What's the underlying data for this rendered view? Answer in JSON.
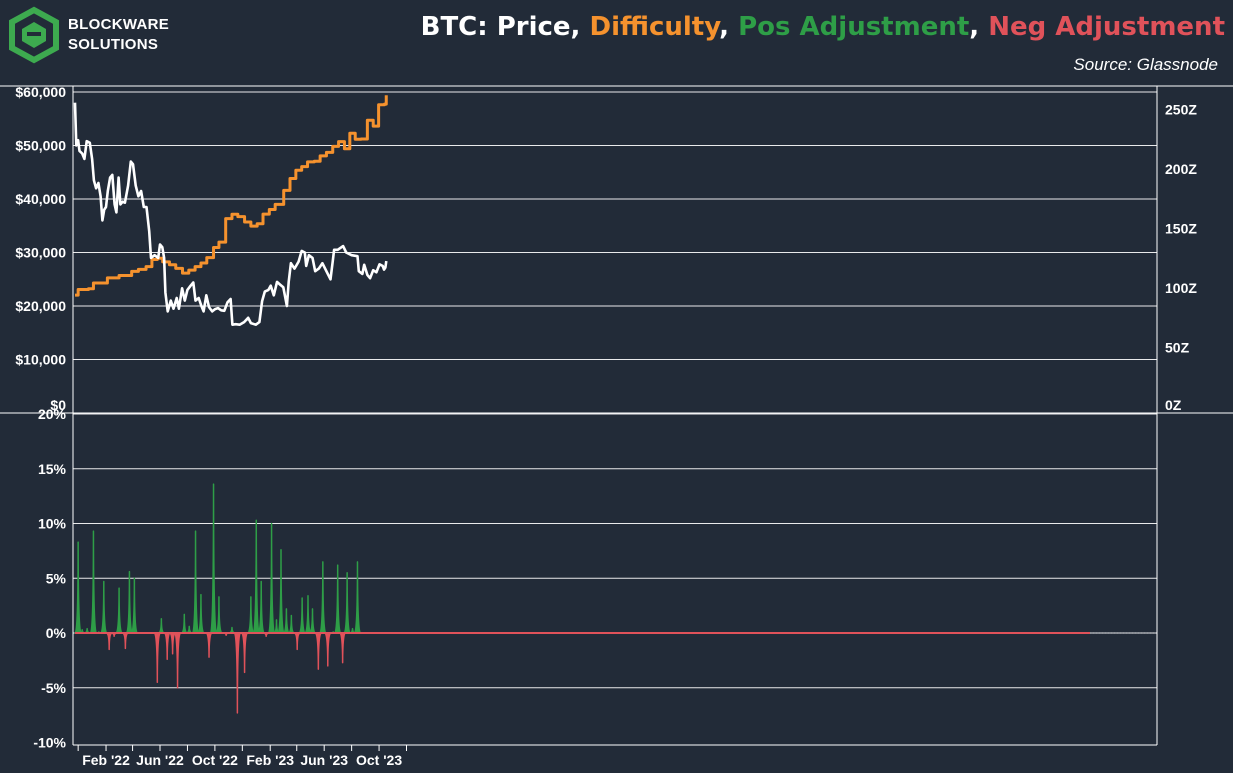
{
  "brand": {
    "line1": "BLOCKWARE",
    "line2": "SOLUTIONS",
    "logo_icon": "blockware-hexagon-logo-icon",
    "logo_color": "#3daa4f"
  },
  "title": {
    "price": "BTC: Price",
    "sep1": ", ",
    "difficulty": "Difficulty",
    "sep2": ", ",
    "pos": "Pos Adjustment",
    "sep3": ", ",
    "neg": "Neg Adjustment"
  },
  "source": "Source: Glassnode",
  "colors": {
    "background": "#222b38",
    "price": "#ffffff",
    "difficulty": "#f5922e",
    "pos": "#2e9e47",
    "neg": "#e0525a",
    "grid": "#ffffff"
  },
  "chart_data": [
    {
      "type": "line",
      "panel": "top",
      "x_ticks": [
        "Feb '22",
        "Jun '22",
        "Oct '22",
        "Feb '23",
        "Jun '23",
        "Oct '23"
      ],
      "y_left_ticks": [
        "$0",
        "$10,000",
        "$20,000",
        "$30,000",
        "$40,000",
        "$50,000",
        "$60,000"
      ],
      "y_right_ticks": [
        "0Z",
        "50Z",
        "100Z",
        "150Z",
        "200Z",
        "250Z"
      ],
      "ylim_left": [
        0,
        60000
      ],
      "ylim_right": [
        0,
        270
      ],
      "series": [
        {
          "name": "Price",
          "axis": "left",
          "points": [
            [
              "2021-11-24",
              58000
            ],
            [
              "2021-11-27",
              50000
            ],
            [
              "2021-12-01",
              51000
            ],
            [
              "2021-12-04",
              49000
            ],
            [
              "2021-12-10",
              48500
            ],
            [
              "2021-12-15",
              47500
            ],
            [
              "2021-12-20",
              50800
            ],
            [
              "2021-12-27",
              50500
            ],
            [
              "2022-01-01",
              47500
            ],
            [
              "2022-01-05",
              43500
            ],
            [
              "2022-01-10",
              42000
            ],
            [
              "2022-01-15",
              43000
            ],
            [
              "2022-01-20",
              40500
            ],
            [
              "2022-01-24",
              36000
            ],
            [
              "2022-01-28",
              38000
            ],
            [
              "2022-02-01",
              38500
            ],
            [
              "2022-02-05",
              41500
            ],
            [
              "2022-02-10",
              44000
            ],
            [
              "2022-02-15",
              44500
            ],
            [
              "2022-02-20",
              39000
            ],
            [
              "2022-02-24",
              37500
            ],
            [
              "2022-03-01",
              44000
            ],
            [
              "2022-03-05",
              39000
            ],
            [
              "2022-03-10",
              39500
            ],
            [
              "2022-03-15",
              39300
            ],
            [
              "2022-03-22",
              42500
            ],
            [
              "2022-03-28",
              47000
            ],
            [
              "2022-04-02",
              46500
            ],
            [
              "2022-04-08",
              42500
            ],
            [
              "2022-04-14",
              40500
            ],
            [
              "2022-04-20",
              41500
            ],
            [
              "2022-04-26",
              38500
            ],
            [
              "2022-05-02",
              38500
            ],
            [
              "2022-05-08",
              34000
            ],
            [
              "2022-05-12",
              29000
            ],
            [
              "2022-05-20",
              29500
            ],
            [
              "2022-05-28",
              29000
            ],
            [
              "2022-06-01",
              31500
            ],
            [
              "2022-06-06",
              31000
            ],
            [
              "2022-06-10",
              29000
            ],
            [
              "2022-06-13",
              22500
            ],
            [
              "2022-06-18",
              19000
            ],
            [
              "2022-06-25",
              21000
            ],
            [
              "2022-07-01",
              19500
            ],
            [
              "2022-07-08",
              21500
            ],
            [
              "2022-07-13",
              19500
            ],
            [
              "2022-07-20",
              23300
            ],
            [
              "2022-07-26",
              21000
            ],
            [
              "2022-08-01",
              23000
            ],
            [
              "2022-08-08",
              23800
            ],
            [
              "2022-08-14",
              24400
            ],
            [
              "2022-08-19",
              21000
            ],
            [
              "2022-08-26",
              21500
            ],
            [
              "2022-09-01",
              20000
            ],
            [
              "2022-09-06",
              19000
            ],
            [
              "2022-09-12",
              22000
            ],
            [
              "2022-09-18",
              19800
            ],
            [
              "2022-09-25",
              19000
            ],
            [
              "2022-10-01",
              19400
            ],
            [
              "2022-10-08",
              19600
            ],
            [
              "2022-10-15",
              19200
            ],
            [
              "2022-10-22",
              19100
            ],
            [
              "2022-10-29",
              20700
            ],
            [
              "2022-11-05",
              21300
            ],
            [
              "2022-11-09",
              16500
            ],
            [
              "2022-11-16",
              16600
            ],
            [
              "2022-11-25",
              16500
            ],
            [
              "2022-12-05",
              17000
            ],
            [
              "2022-12-14",
              17800
            ],
            [
              "2022-12-20",
              16800
            ],
            [
              "2022-12-31",
              16500
            ],
            [
              "2023-01-08",
              17000
            ],
            [
              "2023-01-14",
              20900
            ],
            [
              "2023-01-20",
              22700
            ],
            [
              "2023-01-28",
              23000
            ],
            [
              "2023-02-02",
              23800
            ],
            [
              "2023-02-09",
              22000
            ],
            [
              "2023-02-16",
              24500
            ],
            [
              "2023-02-23",
              24000
            ],
            [
              "2023-03-02",
              23500
            ],
            [
              "2023-03-10",
              20000
            ],
            [
              "2023-03-14",
              24500
            ],
            [
              "2023-03-19",
              28000
            ],
            [
              "2023-03-27",
              27000
            ],
            [
              "2023-04-05",
              28300
            ],
            [
              "2023-04-12",
              30300
            ],
            [
              "2023-04-19",
              30000
            ],
            [
              "2023-04-22",
              27500
            ],
            [
              "2023-04-28",
              29500
            ],
            [
              "2023-05-06",
              29000
            ],
            [
              "2023-05-12",
              26500
            ],
            [
              "2023-05-20",
              27000
            ],
            [
              "2023-05-28",
              28000
            ],
            [
              "2023-06-06",
              26500
            ],
            [
              "2023-06-15",
              25000
            ],
            [
              "2023-06-20",
              28300
            ],
            [
              "2023-06-23",
              30500
            ],
            [
              "2023-07-01",
              30500
            ],
            [
              "2023-07-13",
              31200
            ],
            [
              "2023-07-20",
              30000
            ],
            [
              "2023-08-01",
              29500
            ],
            [
              "2023-08-14",
              29300
            ],
            [
              "2023-08-17",
              26500
            ],
            [
              "2023-08-25",
              26000
            ],
            [
              "2023-08-29",
              27700
            ],
            [
              "2023-09-05",
              25800
            ],
            [
              "2023-09-11",
              25200
            ],
            [
              "2023-09-18",
              26700
            ],
            [
              "2023-09-25",
              26300
            ],
            [
              "2023-10-02",
              27800
            ],
            [
              "2023-10-09",
              27500
            ],
            [
              "2023-10-12",
              26800
            ],
            [
              "2023-10-15",
              27200
            ],
            [
              "2023-10-17",
              28400
            ]
          ]
        },
        {
          "name": "Difficulty",
          "axis": "right",
          "steps": [
            [
              "2021-11-24",
              94.0
            ],
            [
              "2021-12-01",
              98.7
            ],
            [
              "2021-12-10",
              98.7
            ],
            [
              "2021-12-24",
              99.4
            ],
            [
              "2022-01-04",
              104.2
            ],
            [
              "2022-01-20",
              104.2
            ],
            [
              "2022-02-04",
              108.5
            ],
            [
              "2022-03-02",
              110.5
            ],
            [
              "2022-03-30",
              114.0
            ],
            [
              "2022-04-14",
              115.7
            ],
            [
              "2022-05-01",
              118.0
            ],
            [
              "2022-05-14",
              124.0
            ],
            [
              "2022-05-26",
              125.0
            ],
            [
              "2022-06-07",
              122.0
            ],
            [
              "2022-06-22",
              119.5
            ],
            [
              "2022-07-06",
              116.5
            ],
            [
              "2022-07-21",
              112.5
            ],
            [
              "2022-08-04",
              115.0
            ],
            [
              "2022-08-18",
              118.0
            ],
            [
              "2022-08-31",
              121.0
            ],
            [
              "2022-09-13",
              125.5
            ],
            [
              "2022-09-28",
              134.0
            ],
            [
              "2022-10-10",
              138.6
            ],
            [
              "2022-10-25",
              158.3
            ],
            [
              "2022-11-08",
              162.0
            ],
            [
              "2022-11-21",
              160.0
            ],
            [
              "2022-12-06",
              155.5
            ],
            [
              "2022-12-20",
              152.0
            ],
            [
              "2023-01-03",
              154.0
            ],
            [
              "2023-01-16",
              162.1
            ],
            [
              "2023-01-30",
              166.0
            ],
            [
              "2023-02-12",
              170.3
            ],
            [
              "2023-03-03",
              182.0
            ],
            [
              "2023-03-17",
              192.0
            ],
            [
              "2023-03-30",
              199.0
            ],
            [
              "2023-04-12",
              202.0
            ],
            [
              "2023-04-25",
              206.0
            ],
            [
              "2023-05-10",
              206.5
            ],
            [
              "2023-05-23",
              211.0
            ],
            [
              "2023-06-06",
              214.0
            ],
            [
              "2023-06-20",
              219.0
            ],
            [
              "2023-07-03",
              223.0
            ],
            [
              "2023-07-16",
              217.0
            ],
            [
              "2023-07-28",
              230.0
            ],
            [
              "2023-08-09",
              225.0
            ],
            [
              "2023-08-22",
              225.2
            ],
            [
              "2023-09-05",
              241.0
            ],
            [
              "2023-09-18",
              236.0
            ],
            [
              "2023-09-30",
              254.0
            ],
            [
              "2023-10-13",
              254.5
            ],
            [
              "2023-10-17",
              262.0
            ]
          ]
        }
      ]
    },
    {
      "type": "bar",
      "panel": "bottom",
      "y_ticks": [
        "-10%",
        "-5%",
        "0%",
        "5%",
        "10%",
        "15%",
        "20%"
      ],
      "ylim": [
        -10,
        20
      ],
      "adjustments": [
        [
          "2021-12-01",
          8.3
        ],
        [
          "2021-12-10",
          0.3
        ],
        [
          "2021-12-21",
          0.4
        ],
        [
          "2022-01-04",
          9.3
        ],
        [
          "2022-01-16",
          0.1
        ],
        [
          "2022-01-27",
          4.7
        ],
        [
          "2022-02-08",
          -1.5
        ],
        [
          "2022-02-19",
          -0.3
        ],
        [
          "2022-03-02",
          4.1
        ],
        [
          "2022-03-16",
          -1.4
        ],
        [
          "2022-03-25",
          5.6
        ],
        [
          "2022-04-05",
          5.0
        ],
        [
          "2022-05-26",
          -4.5
        ],
        [
          "2022-06-04",
          1.3
        ],
        [
          "2022-06-17",
          -2.4
        ],
        [
          "2022-06-29",
          -1.9
        ],
        [
          "2022-07-10",
          -5.0
        ],
        [
          "2022-07-25",
          1.7
        ],
        [
          "2022-08-05",
          0.6
        ],
        [
          "2022-08-19",
          9.3
        ],
        [
          "2022-08-31",
          3.5
        ],
        [
          "2022-09-18",
          -2.2
        ],
        [
          "2022-09-28",
          13.6
        ],
        [
          "2022-10-10",
          3.3
        ],
        [
          "2022-10-26",
          -0.2
        ],
        [
          "2022-11-08",
          0.5
        ],
        [
          "2022-11-20",
          -7.3
        ],
        [
          "2022-12-06",
          -3.6
        ],
        [
          "2022-12-20",
          3.3
        ],
        [
          "2023-01-01",
          10.3
        ],
        [
          "2023-01-12",
          4.7
        ],
        [
          "2023-01-23",
          -0.3
        ],
        [
          "2023-02-04",
          10.0
        ],
        [
          "2023-02-15",
          1.2
        ],
        [
          "2023-02-25",
          7.6
        ],
        [
          "2023-03-09",
          2.2
        ],
        [
          "2023-03-20",
          1.6
        ],
        [
          "2023-04-02",
          -1.5
        ],
        [
          "2023-04-13",
          3.2
        ],
        [
          "2023-04-26",
          3.4
        ],
        [
          "2023-05-06",
          2.2
        ],
        [
          "2023-05-19",
          -3.3
        ],
        [
          "2023-05-29",
          6.5
        ],
        [
          "2023-06-09",
          -3.0
        ],
        [
          "2023-06-21",
          0.1
        ],
        [
          "2023-07-01",
          6.2
        ],
        [
          "2023-07-12",
          -2.7
        ],
        [
          "2023-07-22",
          5.5
        ],
        [
          "2023-08-03",
          0.4
        ],
        [
          "2023-08-14",
          6.5
        ]
      ]
    }
  ]
}
